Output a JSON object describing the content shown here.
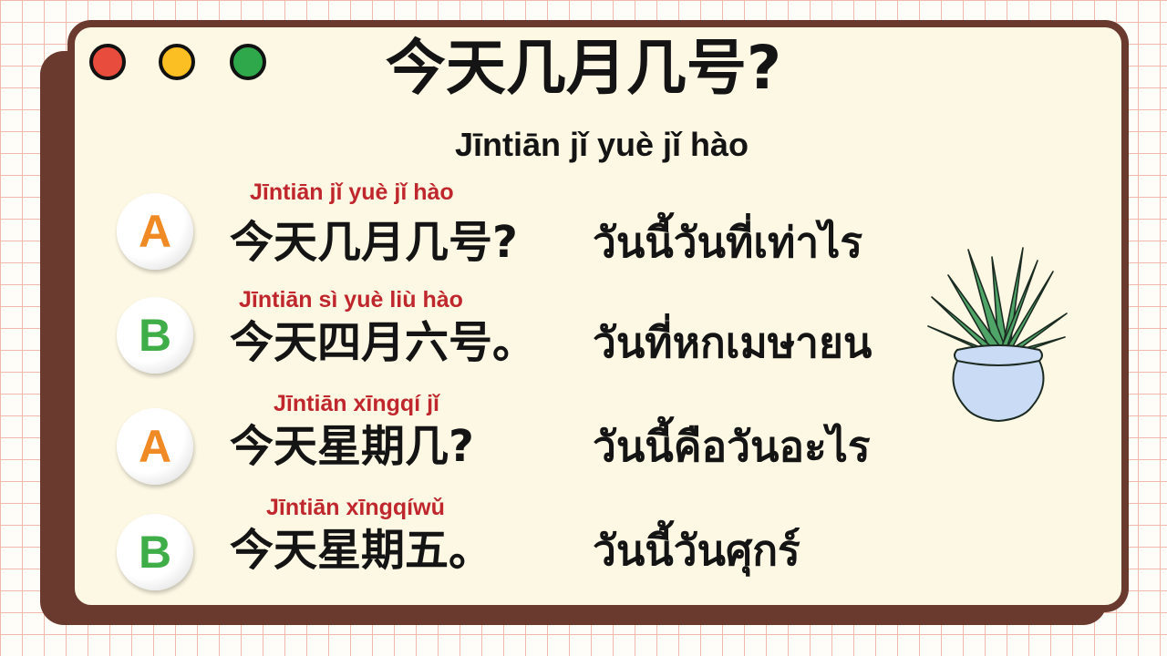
{
  "window_controls": [
    {
      "name": "close",
      "color": "#e74c3c"
    },
    {
      "name": "minimize",
      "color": "#fbbf24"
    },
    {
      "name": "maximize",
      "color": "#2ea84a"
    }
  ],
  "title": "今天几月几号?",
  "title_pinyin": "Jīntiān jǐ yuè jǐ hào",
  "dialogue": [
    {
      "speaker": "A",
      "speaker_color": "#f08a24",
      "pinyin": "Jīntiān jǐ yuè jǐ hào",
      "chinese": "今天几月几号?",
      "thai": "วันนี้วันที่เท่าไร"
    },
    {
      "speaker": "B",
      "speaker_color": "#3fae49",
      "pinyin": "Jīntiān sì yuè liù hào",
      "chinese": "今天四月六号。",
      "thai": "วันที่หกเมษายน"
    },
    {
      "speaker": "A",
      "speaker_color": "#f08a24",
      "pinyin": "Jīntiān xīngqí jǐ",
      "chinese": "今天星期几?",
      "thai": "วันนี้คือวันอะไร"
    },
    {
      "speaker": "B",
      "speaker_color": "#3fae49",
      "pinyin": "Jīntiān xīngqíwǔ",
      "chinese": "今天星期五。",
      "thai": "วันนี้วันศุกร์"
    }
  ],
  "decoration": {
    "icon": "potted-plant-icon",
    "pot_color": "#c9dbf5",
    "leaf_color": "#4fa567"
  }
}
